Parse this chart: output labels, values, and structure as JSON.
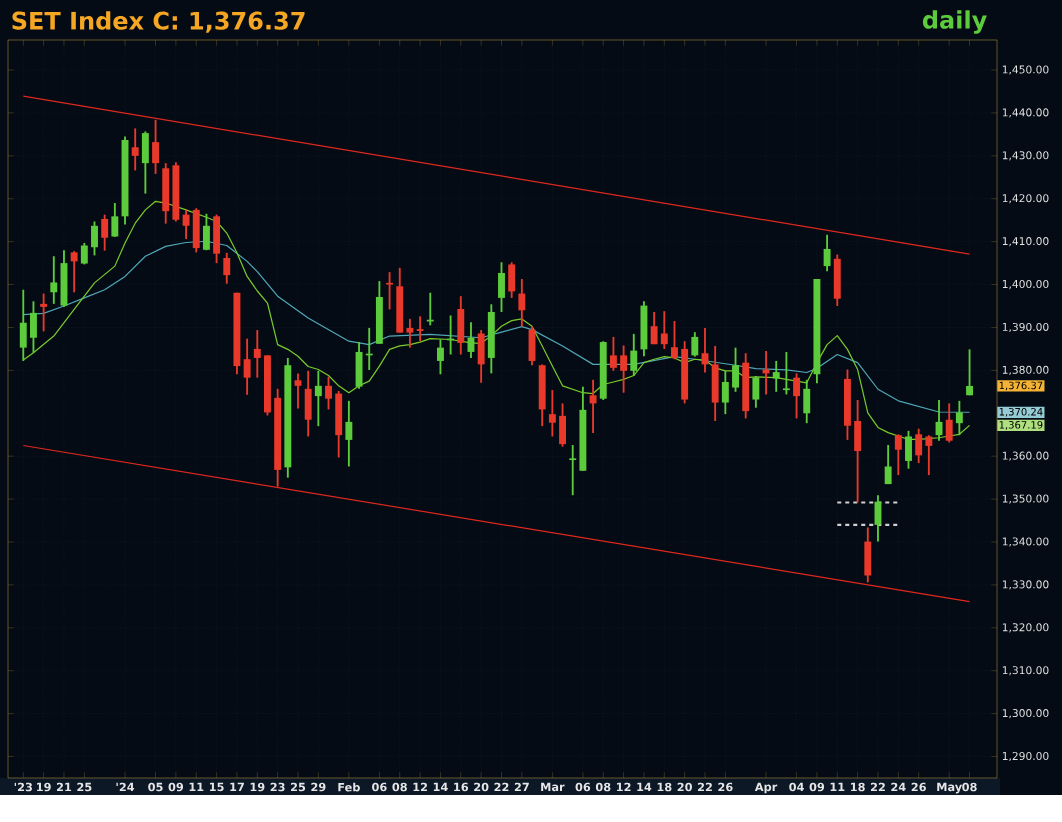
{
  "chart_data": {
    "type": "candlestick",
    "title": "SET Index C: 1,376.37",
    "subtitle": "daily",
    "categories": [
      "'23",
      null,
      "19",
      null,
      "21",
      null,
      "25",
      null,
      null,
      null,
      "'24",
      null,
      null,
      "05",
      null,
      "09",
      null,
      "11",
      null,
      "15",
      null,
      "17",
      null,
      "19",
      null,
      "23",
      null,
      "25",
      null,
      "29",
      null,
      null,
      "Feb",
      null,
      null,
      "06",
      null,
      "08",
      null,
      "12",
      null,
      "14",
      null,
      "16",
      null,
      "20",
      null,
      "22",
      null,
      "27",
      null,
      null,
      "Mar",
      null,
      null,
      "06",
      null,
      "08",
      null,
      "12",
      null,
      "14",
      null,
      "18",
      null,
      "20",
      null,
      "22",
      null,
      "26",
      null,
      null,
      null,
      "Apr",
      null,
      null,
      "04",
      null,
      "09",
      null,
      "11",
      null,
      "18",
      null,
      "22",
      null,
      "24",
      null,
      "26",
      null,
      null,
      "May",
      null,
      "08"
    ],
    "colors": [
      "#5ccc3c",
      "#5ccc3c",
      "#e8392a",
      "#5ccc3c",
      "#5ccc3c",
      "#e8392a",
      "#5ccc3c",
      "#5ccc3c",
      "#e8392a",
      "#5ccc3c",
      "#5ccc3c",
      "#e8392a",
      "#5ccc3c",
      "#e8392a",
      "#e8392a",
      "#e8392a",
      "#e8392a",
      "#e8392a",
      "#5ccc3c",
      "#e8392a",
      "#e8392a",
      "#e8392a",
      "#e8392a",
      "#e8392a",
      "#e8392a",
      "#e8392a",
      "#5ccc3c",
      "#e8392a",
      "#e8392a",
      "#5ccc3c",
      "#e8392a",
      "#e8392a",
      "#5ccc3c",
      "#5ccc3c",
      "#5ccc3c",
      "#5ccc3c",
      "#e8392a",
      "#e8392a",
      "#e8392a",
      "#e8392a",
      "#5ccc3c",
      "#5ccc3c",
      "#5ccc3c",
      "#e8392a",
      "#5ccc3c",
      "#e8392a",
      "#5ccc3c",
      "#5ccc3c",
      "#e8392a",
      "#e8392a",
      "#e8392a",
      "#e8392a",
      "#e8392a",
      "#e8392a",
      "#5ccc3c",
      "#5ccc3c",
      "#e8392a",
      "#5ccc3c",
      "#e8392a",
      "#e8392a",
      "#5ccc3c",
      "#5ccc3c",
      "#e8392a",
      "#e8392a",
      "#e8392a",
      "#e8392a",
      "#5ccc3c",
      "#e8392a",
      "#e8392a",
      "#5ccc3c",
      "#5ccc3c",
      "#e8392a",
      "#5ccc3c",
      "#e8392a",
      "#5ccc3c",
      "#5ccc3c",
      "#e8392a",
      "#5ccc3c",
      "#5ccc3c",
      "#5ccc3c",
      "#e8392a",
      "#e8392a",
      "#e8392a",
      "#e8392a",
      "#5ccc3c",
      "#5ccc3c",
      "#e8392a",
      "#5ccc3c",
      "#e8392a",
      "#e8392a",
      "#5ccc3c",
      "#e8392a",
      "#5ccc3c",
      "#5ccc3c"
    ],
    "ohlc": [
      [
        1385.3,
        1398.8,
        1382.2,
        1391.1
      ],
      [
        1387.6,
        1396.1,
        1384.1,
        1393.4
      ],
      [
        1395.5,
        1397.9,
        1389.1,
        1394.8
      ],
      [
        1398.2,
        1406.6,
        1395.5,
        1400.5
      ],
      [
        1395.1,
        1408.0,
        1394.8,
        1405.0
      ],
      [
        1407.5,
        1407.8,
        1398.2,
        1405.4
      ],
      [
        1404.9,
        1409.7,
        1404.7,
        1409.1
      ],
      [
        1408.7,
        1414.7,
        1406.8,
        1413.7
      ],
      [
        1415.3,
        1416.3,
        1407.9,
        1410.9
      ],
      [
        1411.2,
        1419.0,
        1411.1,
        1415.9
      ],
      [
        1415.9,
        1434.5,
        1414.0,
        1433.7
      ],
      [
        1432.0,
        1436.4,
        1426.6,
        1430.0
      ],
      [
        1428.3,
        1435.7,
        1421.2,
        1435.3
      ],
      [
        1433.2,
        1438.4,
        1425.8,
        1428.3
      ],
      [
        1427.1,
        1428.3,
        1414.2,
        1417.1
      ],
      [
        1427.8,
        1428.5,
        1414.7,
        1415.1
      ],
      [
        1416.3,
        1417.4,
        1410.6,
        1413.7
      ],
      [
        1417.4,
        1417.8,
        1407.5,
        1408.5
      ],
      [
        1408.1,
        1416.5,
        1408.0,
        1413.7
      ],
      [
        1415.9,
        1416.3,
        1405.0,
        1407.2
      ],
      [
        1406.2,
        1407.4,
        1400.2,
        1402.2
      ],
      [
        1398.1,
        1398.1,
        1379.1,
        1381.0
      ],
      [
        1382.6,
        1387.4,
        1374.3,
        1378.3
      ],
      [
        1385.0,
        1389.4,
        1378.3,
        1382.9
      ],
      [
        1383.5,
        1383.5,
        1369.5,
        1370.2
      ],
      [
        1373.6,
        1375.7,
        1352.9,
        1356.8
      ],
      [
        1357.4,
        1382.9,
        1355.0,
        1381.2
      ],
      [
        1377.7,
        1379.3,
        1371.1,
        1376.4
      ],
      [
        1375.7,
        1379.9,
        1364.6,
        1368.5
      ],
      [
        1374.0,
        1379.9,
        1367.0,
        1376.4
      ],
      [
        1376.4,
        1378.5,
        1370.9,
        1373.4
      ],
      [
        1374.6,
        1375.2,
        1359.7,
        1364.9
      ],
      [
        1363.8,
        1372.9,
        1357.6,
        1368.0
      ],
      [
        1376.2,
        1386.6,
        1375.7,
        1384.3
      ],
      [
        1383.5,
        1389.9,
        1380.1,
        1383.9
      ],
      [
        1386.2,
        1400.8,
        1386.2,
        1397.1
      ],
      [
        1400.4,
        1402.9,
        1394.2,
        1400.0
      ],
      [
        1399.6,
        1403.9,
        1388.8,
        1388.8
      ],
      [
        1389.9,
        1392.0,
        1385.3,
        1388.8
      ],
      [
        1389.6,
        1392.6,
        1386.8,
        1389.4
      ],
      [
        1391.4,
        1398.1,
        1390.5,
        1391.8
      ],
      [
        1382.2,
        1387.2,
        1379.1,
        1385.3
      ],
      [
        1387.0,
        1392.8,
        1383.7,
        1387.4
      ],
      [
        1394.3,
        1397.3,
        1383.7,
        1386.4
      ],
      [
        1384.3,
        1391.2,
        1382.9,
        1387.6
      ],
      [
        1388.6,
        1389.4,
        1377.1,
        1381.4
      ],
      [
        1382.9,
        1395.4,
        1379.3,
        1393.6
      ],
      [
        1396.9,
        1405.2,
        1393.6,
        1402.7
      ],
      [
        1404.7,
        1405.2,
        1396.9,
        1398.4
      ],
      [
        1397.9,
        1401.3,
        1390.2,
        1394.0
      ],
      [
        1389.5,
        1390.2,
        1381.2,
        1382.2
      ],
      [
        1381.2,
        1381.4,
        1367.0,
        1370.9
      ],
      [
        1369.8,
        1375.4,
        1364.6,
        1367.8
      ],
      [
        1369.4,
        1372.3,
        1362.2,
        1362.8
      ],
      [
        1359.1,
        1362.6,
        1350.9,
        1359.5
      ],
      [
        1356.6,
        1376.2,
        1356.6,
        1370.8
      ],
      [
        1374.2,
        1377.8,
        1365.4,
        1372.3
      ],
      [
        1373.4,
        1386.8,
        1373.1,
        1386.6
      ],
      [
        1383.5,
        1387.8,
        1379.9,
        1380.6
      ],
      [
        1383.5,
        1385.8,
        1374.8,
        1379.9
      ],
      [
        1379.9,
        1388.5,
        1378.7,
        1384.6
      ],
      [
        1384.9,
        1396.1,
        1383.3,
        1395.1
      ],
      [
        1390.3,
        1393.6,
        1386.1,
        1386.1
      ],
      [
        1388.6,
        1393.8,
        1385.0,
        1386.1
      ],
      [
        1385.4,
        1391.5,
        1382.6,
        1382.9
      ],
      [
        1385.0,
        1386.8,
        1372.3,
        1373.2
      ],
      [
        1383.5,
        1388.9,
        1383.2,
        1387.8
      ],
      [
        1384.0,
        1389.9,
        1379.5,
        1381.4
      ],
      [
        1381.4,
        1385.7,
        1368.2,
        1372.5
      ],
      [
        1372.5,
        1379.9,
        1369.8,
        1377.3
      ],
      [
        1376.0,
        1385.3,
        1375.0,
        1381.2
      ],
      [
        1381.8,
        1384.0,
        1368.8,
        1370.5
      ],
      [
        1373.2,
        1378.7,
        1371.3,
        1378.3
      ],
      [
        1380.2,
        1384.5,
        1374.4,
        1379.3
      ],
      [
        1378.1,
        1382.2,
        1375.0,
        1379.6
      ],
      [
        1375.4,
        1384.3,
        1374.4,
        1375.8
      ],
      [
        1378.3,
        1379.3,
        1368.8,
        1374.0
      ],
      [
        1370.0,
        1377.8,
        1367.7,
        1375.7
      ],
      [
        1379.1,
        1401.3,
        1377.0,
        1401.3
      ],
      [
        1404.3,
        1411.6,
        1403.1,
        1408.3
      ],
      [
        1406.0,
        1407.0,
        1395.0,
        1396.7
      ],
      [
        1378.0,
        1380.2,
        1363.8,
        1367.1
      ],
      [
        1368.2,
        1373.1,
        1349.2,
        1361.2
      ],
      [
        1340.1,
        1343.4,
        1330.6,
        1332.2
      ],
      [
        1344.0,
        1350.9,
        1340.1,
        1349.4
      ],
      [
        1353.5,
        1362.6,
        1353.5,
        1357.6
      ],
      [
        1364.9,
        1365.1,
        1355.6,
        1361.5
      ],
      [
        1358.9,
        1365.9,
        1357.1,
        1364.6
      ],
      [
        1365.1,
        1366.4,
        1358.4,
        1360.2
      ],
      [
        1364.6,
        1364.9,
        1355.6,
        1362.4
      ],
      [
        1364.9,
        1373.1,
        1363.6,
        1368.0
      ],
      [
        1368.5,
        1372.3,
        1363.2,
        1363.6
      ],
      [
        1367.7,
        1372.9,
        1364.9,
        1370.2
      ],
      [
        1374.2,
        1384.9,
        1374.2,
        1376.37
      ]
    ],
    "series": [
      {
        "type": "line",
        "color": "#e0281e",
        "values": [
          1443.9,
          null,
          null,
          null,
          null,
          null,
          null,
          null,
          null,
          null,
          null,
          null,
          null,
          null,
          null,
          null,
          null,
          null,
          null,
          null,
          null,
          null,
          null,
          null,
          null,
          null,
          null,
          null,
          null,
          null,
          null,
          null,
          null,
          null,
          null,
          null,
          null,
          null,
          null,
          null,
          null,
          null,
          null,
          null,
          null,
          null,
          null,
          null,
          null,
          null,
          null,
          null,
          null,
          null,
          null,
          null,
          null,
          null,
          null,
          null,
          null,
          null,
          null,
          null,
          null,
          null,
          null,
          null,
          null,
          null,
          null,
          null,
          null,
          null,
          null,
          null,
          null,
          null,
          null,
          null,
          null,
          null,
          null,
          null,
          null,
          null,
          null,
          null,
          null,
          null,
          null,
          null,
          null,
          1407.1
        ]
      },
      {
        "type": "line",
        "color": "#e0281e",
        "values": [
          1362.5,
          null,
          null,
          null,
          null,
          null,
          null,
          null,
          null,
          null,
          null,
          null,
          null,
          null,
          null,
          null,
          null,
          null,
          null,
          null,
          null,
          null,
          null,
          null,
          null,
          null,
          null,
          null,
          null,
          null,
          null,
          null,
          null,
          null,
          null,
          null,
          null,
          null,
          null,
          null,
          null,
          null,
          null,
          null,
          null,
          null,
          null,
          null,
          null,
          null,
          null,
          null,
          null,
          null,
          null,
          null,
          null,
          null,
          null,
          null,
          null,
          null,
          null,
          null,
          null,
          null,
          null,
          null,
          null,
          null,
          null,
          null,
          null,
          null,
          null,
          null,
          null,
          null,
          null,
          null,
          null,
          null,
          null,
          null,
          null,
          null,
          null,
          null,
          null,
          null,
          null,
          null,
          null,
          1326.1
        ]
      },
      {
        "type": "line",
        "color": "#4fa8b8",
        "values": [
          1393.0,
          null,
          1393.3,
          null,
          1395.0,
          null,
          1396.9,
          null,
          1398.8,
          null,
          1401.9,
          null,
          1406.6,
          null,
          1408.9,
          null,
          1409.8,
          null,
          1410.1,
          null,
          1409.1,
          null,
          1405.4,
          1403.0,
          null,
          1397.3,
          null,
          null,
          1392.2,
          null,
          null,
          null,
          1386.8,
          null,
          1386.0,
          null,
          1388.0,
          null,
          null,
          null,
          1388.4,
          null,
          null,
          null,
          null,
          1387.6,
          null,
          1388.9,
          null,
          1390.2,
          1389.5,
          null,
          null,
          1385.7,
          null,
          null,
          1381.4,
          null,
          null,
          null,
          1381.4,
          null,
          null,
          null,
          1383.2,
          null,
          1382.6,
          null,
          null,
          null,
          1381.2,
          null,
          1380.4,
          null,
          null,
          1380.1,
          null,
          1379.5,
          1380.5,
          null,
          1383.7,
          null,
          1381.8,
          null,
          1375.6,
          null,
          1372.9,
          null,
          null,
          null,
          1370.3,
          null,
          null,
          1370.24
        ]
      },
      {
        "type": "line",
        "color": "#7acc2a",
        "values": [
          1382.4,
          1384.1,
          null,
          1388.0,
          null,
          1394.2,
          null,
          1400.4,
          null,
          1404.3,
          1409.7,
          1414.3,
          1417.4,
          1419.4,
          1419.0,
          null,
          1417.4,
          null,
          1415.7,
          1414.7,
          1412.0,
          1407.4,
          1401.9,
          1398.5,
          1395.7,
          1386.0,
          1384.9,
          1383.3,
          1380.9,
          1380.2,
          1378.8,
          1376.4,
          1374.8,
          1376.4,
          1377.5,
          1381.0,
          1384.9,
          1385.7,
          1386.0,
          1386.6,
          1387.4,
          null,
          1387.2,
          null,
          1386.4,
          1386.3,
          1388.1,
          1390.3,
          1391.6,
          1392.0,
          1390.3,
          1385.7,
          1381.0,
          1376.4,
          1375.6,
          1374.8,
          1374.6,
          1376.7,
          1377.3,
          1377.9,
          1378.8,
          1381.8,
          1382.6,
          1383.2,
          1382.9,
          1381.8,
          1382.6,
          1382.4,
          1380.6,
          1379.9,
          1379.9,
          1378.3,
          1378.5,
          null,
          1378.3,
          null,
          1377.5,
          1377.1,
          1381.8,
          1386.0,
          1388.1,
          1384.9,
          1380.2,
          1370.1,
          1366.7,
          1365.5,
          1364.7,
          1363.9,
          1363.9,
          null,
          1364.3,
          1364.7,
          1365.1,
          1367.19
        ]
      },
      {
        "type": "line",
        "color": "#d0d0d0",
        "line_style": "dashed",
        "values": [
          null,
          null,
          null,
          null,
          null,
          null,
          null,
          null,
          null,
          null,
          null,
          null,
          null,
          null,
          null,
          null,
          null,
          null,
          null,
          null,
          null,
          null,
          null,
          null,
          null,
          null,
          null,
          null,
          null,
          null,
          null,
          null,
          null,
          null,
          null,
          null,
          null,
          null,
          null,
          null,
          null,
          null,
          null,
          null,
          null,
          null,
          null,
          null,
          null,
          null,
          null,
          null,
          null,
          null,
          null,
          null,
          null,
          null,
          null,
          null,
          null,
          null,
          null,
          null,
          null,
          null,
          null,
          null,
          null,
          null,
          null,
          null,
          null,
          null,
          null,
          null,
          null,
          null,
          null,
          null,
          1349.2,
          null,
          null,
          null,
          null,
          null,
          1349.2,
          null,
          null,
          null,
          null,
          null,
          null,
          null
        ]
      },
      {
        "type": "line",
        "color": "#d0d0d0",
        "line_style": "dashed",
        "values": [
          null,
          null,
          null,
          null,
          null,
          null,
          null,
          null,
          null,
          null,
          null,
          null,
          null,
          null,
          null,
          null,
          null,
          null,
          null,
          null,
          null,
          null,
          null,
          null,
          null,
          null,
          null,
          null,
          null,
          null,
          null,
          null,
          null,
          null,
          null,
          null,
          null,
          null,
          null,
          null,
          null,
          null,
          null,
          null,
          null,
          null,
          null,
          null,
          null,
          null,
          null,
          null,
          null,
          null,
          null,
          null,
          null,
          null,
          null,
          null,
          null,
          null,
          null,
          null,
          null,
          null,
          null,
          null,
          null,
          null,
          null,
          null,
          null,
          null,
          null,
          null,
          null,
          null,
          null,
          null,
          1344.0,
          null,
          null,
          null,
          null,
          null,
          1344.0,
          null,
          null,
          null,
          null,
          null,
          null,
          null
        ]
      }
    ],
    "ylim": [
      1285,
      1457
    ],
    "yticks": [
      {
        "value": 1450,
        "label": "1,450.00"
      },
      {
        "value": 1440,
        "label": "1,440.00"
      },
      {
        "value": 1430,
        "label": "1,430.00"
      },
      {
        "value": 1420,
        "label": "1,420.00"
      },
      {
        "value": 1410,
        "label": "1,410.00"
      },
      {
        "value": 1400,
        "label": "1,400.00"
      },
      {
        "value": 1390,
        "label": "1,390.00"
      },
      {
        "value": 1380,
        "label": "1,380.00"
      },
      {
        "value": 1360,
        "label": "1,360.00"
      },
      {
        "value": 1350,
        "label": "1,350.00"
      },
      {
        "value": 1340,
        "label": "1,340.00"
      },
      {
        "value": 1330,
        "label": "1,330.00"
      },
      {
        "value": 1320,
        "label": "1,320.00"
      },
      {
        "value": 1310,
        "label": "1,310.00"
      },
      {
        "value": 1300,
        "label": "1,300.00"
      },
      {
        "value": 1290,
        "label": "1,290.00"
      }
    ],
    "grid": true,
    "annotations": [
      "1,376.37",
      "1,370.24",
      "1,367.19"
    ]
  }
}
